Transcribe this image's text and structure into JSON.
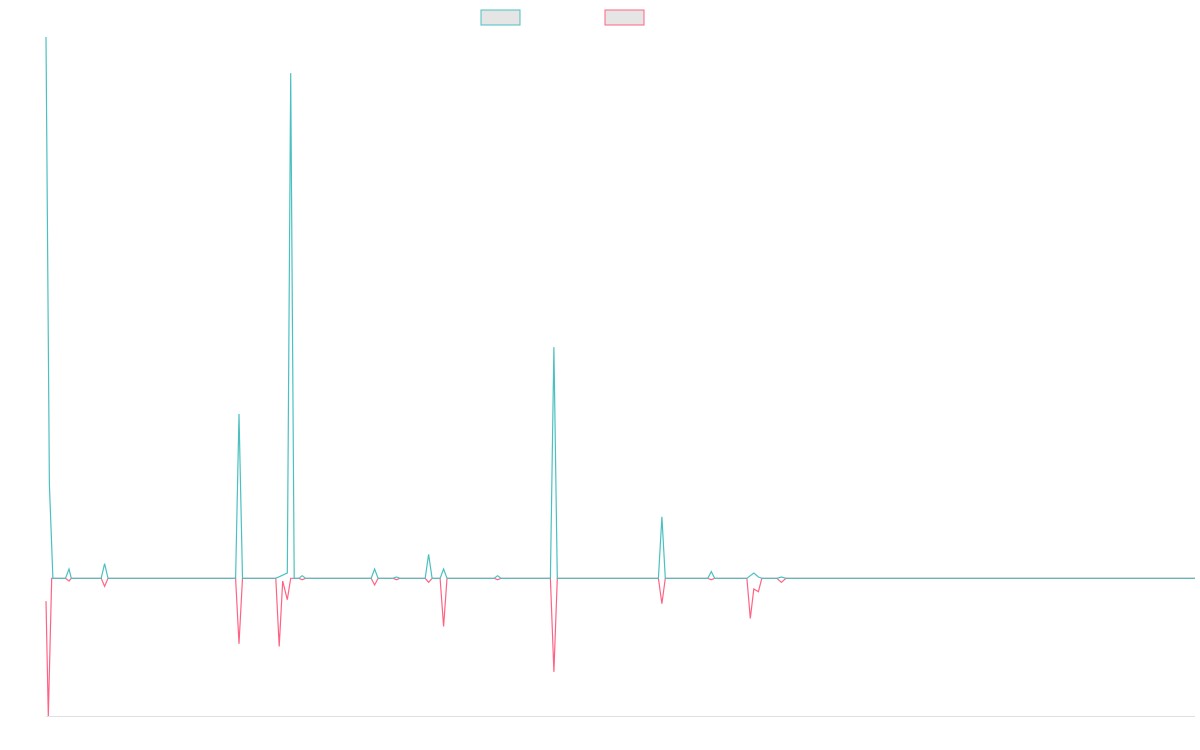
{
  "chart_data": {
    "type": "line",
    "title": "",
    "xlabel": "",
    "ylabel": "",
    "x_range": [
      0,
      100
    ],
    "ylim": [
      -1.03,
      4.05
    ],
    "grid": false,
    "legend_placement": "top-center",
    "colors": {
      "series_1": "#4bc0c0",
      "series_2": "#ff6384",
      "swatch_fill": "#e5e5e5",
      "axis": "#e0e0e0"
    },
    "series": [
      {
        "points": [
          [
            0.0,
            4.05
          ],
          [
            0.3,
            0.7
          ],
          [
            0.6,
            0.0
          ],
          [
            1.0,
            0.0
          ],
          [
            1.7,
            0.0
          ],
          [
            2.0,
            0.07
          ],
          [
            2.2,
            0.0
          ],
          [
            2.4,
            0.0
          ],
          [
            4.8,
            0.0
          ],
          [
            5.1,
            0.11
          ],
          [
            5.4,
            0.0
          ],
          [
            5.7,
            0.0
          ],
          [
            16.5,
            0.0
          ],
          [
            16.8,
            1.23
          ],
          [
            17.1,
            0.0
          ],
          [
            17.3,
            0.0
          ],
          [
            20.0,
            0.0
          ],
          [
            20.5,
            0.02
          ],
          [
            21.0,
            0.04
          ],
          [
            21.3,
            3.78
          ],
          [
            21.6,
            0.0
          ],
          [
            22.0,
            0.0
          ],
          [
            22.3,
            0.02
          ],
          [
            22.6,
            0.0
          ],
          [
            28.3,
            0.0
          ],
          [
            28.6,
            0.07
          ],
          [
            28.9,
            0.0
          ],
          [
            30.2,
            0.0
          ],
          [
            30.5,
            0.01
          ],
          [
            30.8,
            0.0
          ],
          [
            33.0,
            0.0
          ],
          [
            33.3,
            0.18
          ],
          [
            33.6,
            0.0
          ],
          [
            34.3,
            0.0
          ],
          [
            34.6,
            0.07
          ],
          [
            34.9,
            0.0
          ],
          [
            39.0,
            0.0
          ],
          [
            39.3,
            0.02
          ],
          [
            39.6,
            0.0
          ],
          [
            43.9,
            0.0
          ],
          [
            44.2,
            1.73
          ],
          [
            44.5,
            0.0
          ],
          [
            53.3,
            0.0
          ],
          [
            53.6,
            0.46
          ],
          [
            53.9,
            0.0
          ],
          [
            57.6,
            0.0
          ],
          [
            57.9,
            0.05
          ],
          [
            58.2,
            0.0
          ],
          [
            61.0,
            0.0
          ],
          [
            61.3,
            0.02
          ],
          [
            61.6,
            0.04
          ],
          [
            62.0,
            0.01
          ],
          [
            62.3,
            0.0
          ],
          [
            63.6,
            0.0
          ],
          [
            64.0,
            0.01
          ],
          [
            64.4,
            0.0
          ],
          [
            100.0,
            0.0
          ]
        ]
      },
      {
        "points": [
          [
            0.0,
            -0.17
          ],
          [
            0.2,
            -1.03
          ],
          [
            0.5,
            0.0
          ],
          [
            1.0,
            0.0
          ],
          [
            1.7,
            0.0
          ],
          [
            2.0,
            -0.02
          ],
          [
            2.2,
            0.0
          ],
          [
            2.4,
            0.0
          ],
          [
            4.8,
            0.0
          ],
          [
            5.1,
            -0.06
          ],
          [
            5.4,
            0.0
          ],
          [
            6.0,
            0.0
          ],
          [
            16.5,
            0.0
          ],
          [
            16.8,
            -0.49
          ],
          [
            17.1,
            0.0
          ],
          [
            17.3,
            0.0
          ],
          [
            20.0,
            0.0
          ],
          [
            20.3,
            -0.51
          ],
          [
            20.6,
            -0.02
          ],
          [
            21.0,
            -0.16
          ],
          [
            21.3,
            0.0
          ],
          [
            22.0,
            0.0
          ],
          [
            22.3,
            -0.01
          ],
          [
            22.6,
            0.0
          ],
          [
            28.3,
            0.0
          ],
          [
            28.6,
            -0.05
          ],
          [
            28.9,
            0.0
          ],
          [
            30.2,
            0.0
          ],
          [
            30.5,
            -0.01
          ],
          [
            30.8,
            0.0
          ],
          [
            33.0,
            0.0
          ],
          [
            33.3,
            -0.03
          ],
          [
            33.6,
            0.0
          ],
          [
            34.3,
            0.0
          ],
          [
            34.6,
            -0.36
          ],
          [
            34.9,
            0.0
          ],
          [
            39.0,
            0.0
          ],
          [
            39.3,
            -0.01
          ],
          [
            39.6,
            0.0
          ],
          [
            43.9,
            0.0
          ],
          [
            44.2,
            -0.7
          ],
          [
            44.5,
            0.0
          ],
          [
            53.3,
            0.0
          ],
          [
            53.6,
            -0.19
          ],
          [
            53.9,
            0.0
          ],
          [
            57.6,
            0.0
          ],
          [
            57.9,
            -0.01
          ],
          [
            58.2,
            0.0
          ],
          [
            61.0,
            0.0
          ],
          [
            61.3,
            -0.3
          ],
          [
            61.6,
            -0.08
          ],
          [
            62.0,
            -0.1
          ],
          [
            62.3,
            0.0
          ],
          [
            63.6,
            0.0
          ],
          [
            64.0,
            -0.03
          ],
          [
            64.4,
            0.0
          ],
          [
            100.0,
            0.0
          ]
        ]
      }
    ]
  }
}
